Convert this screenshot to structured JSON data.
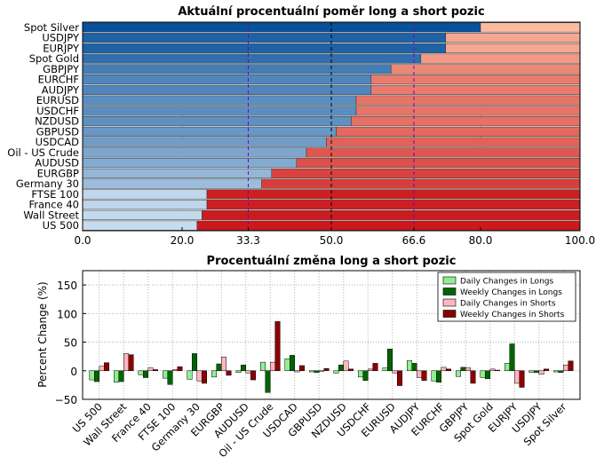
{
  "chart_data": [
    {
      "type": "bar",
      "orientation": "horizontal",
      "stacked": true,
      "title": "Aktuální procentuální poměr long a short pozic",
      "categories": [
        "Spot Silver",
        "USDJPY",
        "EURJPY",
        "Spot Gold",
        "GBPJPY",
        "EURCHF",
        "AUDJPY",
        "EURUSD",
        "USDCHF",
        "NZDUSD",
        "GBPUSD",
        "USDCAD",
        "Oil - US Crude",
        "AUDUSD",
        "EURGBP",
        "Germany 30",
        "FTSE 100",
        "France 40",
        "Wall Street",
        "US 500"
      ],
      "long_values": [
        80,
        73,
        73,
        68,
        62,
        58,
        58,
        55,
        55,
        54,
        51,
        49,
        45,
        43,
        38,
        36,
        25,
        25,
        24,
        23
      ],
      "xlim": [
        0,
        100
      ],
      "xticks": [
        "0.0",
        "20.0",
        "33.3",
        "50.0",
        "66.6",
        "80.0",
        "100.0"
      ],
      "reference_lines": [
        33.3,
        50.0,
        66.6
      ],
      "grid": true
    },
    {
      "type": "bar",
      "title": "Procentuální změna long a short pozic",
      "ylabel": "Percent Change (%)",
      "ylim": [
        -50,
        175
      ],
      "yticks": [
        "−50",
        "0",
        "50",
        "100",
        "150"
      ],
      "categories": [
        "US 500",
        "Wall Street",
        "France 40",
        "FTSE 100",
        "Germany 30",
        "EURGBP",
        "AUDUSD",
        "Oil - US Crude",
        "USDCAD",
        "GBPUSD",
        "NZDUSD",
        "USDCHF",
        "EURUSD",
        "AUDJPY",
        "EURCHF",
        "GBPJPY",
        "Spot Gold",
        "EURJPY",
        "USDJPY",
        "Spot Silver"
      ],
      "series": [
        {
          "name": "Daily Changes in Longs",
          "color": "#90ee90",
          "values": [
            -16,
            -20,
            -7,
            -13,
            -15,
            -11,
            -3,
            15,
            21,
            -2,
            -4,
            -11,
            5,
            18,
            -18,
            -10,
            -12,
            13,
            -3,
            -2
          ]
        },
        {
          "name": "Weekly Changes in Longs",
          "color": "#006400",
          "values": [
            -19,
            -19,
            -12,
            -24,
            30,
            12,
            10,
            -38,
            27,
            -3,
            10,
            -17,
            38,
            13,
            -20,
            6,
            -14,
            47,
            -3,
            -3
          ]
        },
        {
          "name": "Daily Changes in Shorts",
          "color": "#ffb6c1",
          "values": [
            8,
            30,
            5,
            2,
            -18,
            24,
            -4,
            15,
            -2,
            -1,
            17,
            3,
            -4,
            -12,
            6,
            5,
            3,
            -22,
            -6,
            10
          ]
        },
        {
          "name": "Weekly Changes in Shorts",
          "color": "#8b0000",
          "values": [
            14,
            28,
            2,
            7,
            -22,
            -8,
            -16,
            86,
            9,
            4,
            3,
            13,
            -26,
            -17,
            3,
            -22,
            1,
            -29,
            3,
            17
          ]
        }
      ],
      "legend": "top-right",
      "grid": true
    }
  ]
}
